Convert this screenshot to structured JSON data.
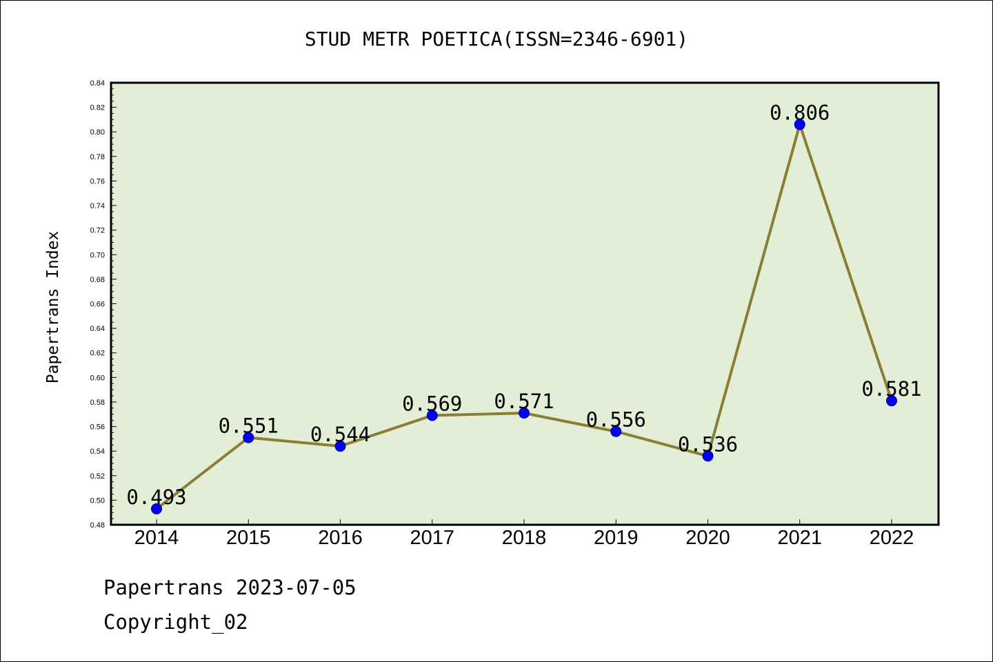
{
  "chart_data": {
    "type": "line",
    "title": "STUD METR POETICA(ISSN=2346-6901)",
    "xlabel": "",
    "ylabel": "Papertrans Index",
    "categories": [
      "2014",
      "2015",
      "2016",
      "2017",
      "2018",
      "2019",
      "2020",
      "2021",
      "2022"
    ],
    "series": [
      {
        "values": [
          0.493,
          0.551,
          0.544,
          0.569,
          0.571,
          0.556,
          0.536,
          0.806,
          0.581
        ]
      }
    ],
    "data_labels": [
      "0.493",
      "0.551",
      "0.544",
      "0.569",
      "0.571",
      "0.556",
      "0.536",
      "0.806",
      "0.581"
    ],
    "ylim": [
      0.48,
      0.84
    ],
    "yticks": [
      "0.48",
      "0.50",
      "0.52",
      "0.54",
      "0.56",
      "0.58",
      "0.60",
      "0.62",
      "0.64",
      "0.66",
      "0.68",
      "0.70",
      "0.72",
      "0.74",
      "0.76",
      "0.78",
      "0.80",
      "0.82",
      "0.84"
    ],
    "grid": false,
    "legend": "none",
    "colors": {
      "plot_background": "#e2efd6",
      "line": "#8b7d35",
      "marker": "#0000ff",
      "marker_edge": "#000080"
    }
  },
  "footer": {
    "line1": "Papertrans 2023-07-05",
    "line2": "Copyright_02"
  }
}
